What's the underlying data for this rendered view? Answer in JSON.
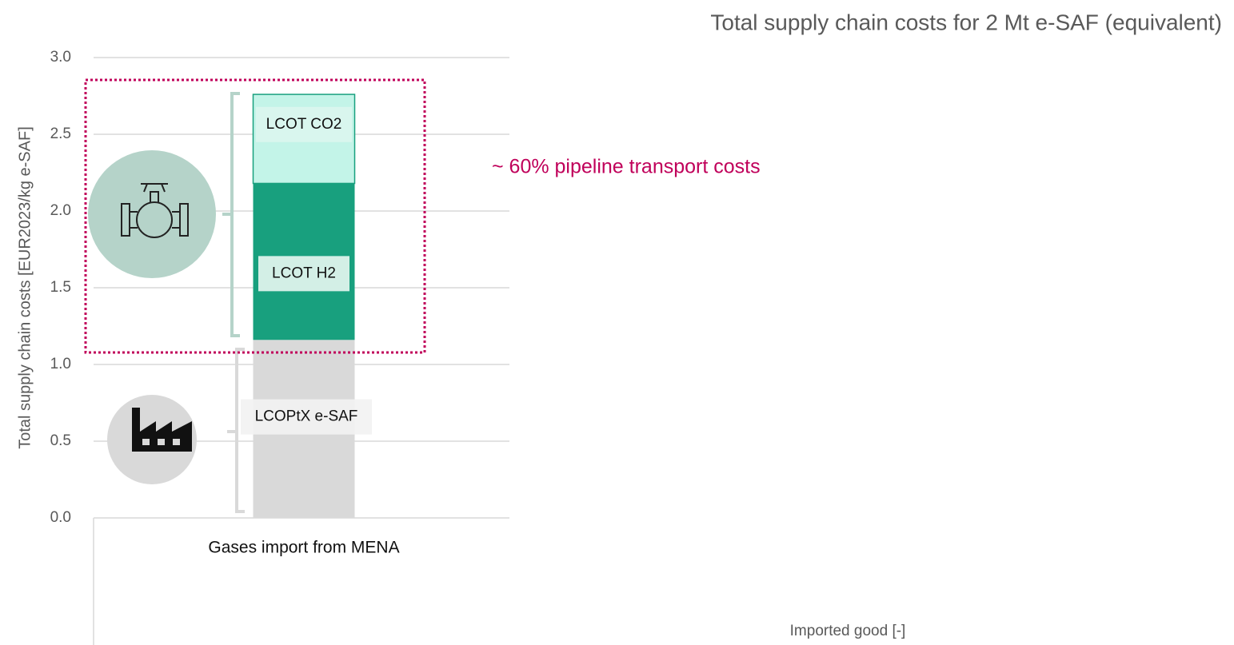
{
  "chart_data": {
    "type": "stacked_bar",
    "title": "Total supply chain costs for 2 Mt e-SAF (equivalent)",
    "y_label": "Total supply chain costs [EUR2023/kg e-SAF]",
    "x_label": "Imported good [-]",
    "annotation": "~ 60% pipeline transport costs",
    "categories": [
      "Gases import from MENA"
    ],
    "series": [
      {
        "name": "LCOPtX e-SAF",
        "color": "#d9d9d9",
        "values": [
          1.16
        ]
      },
      {
        "name": "LCOT H2",
        "color": "#18a07e",
        "values": [
          1.02
        ]
      },
      {
        "name": "LCOT CO2",
        "color": "#c3f4e8",
        "values": [
          0.58
        ]
      }
    ],
    "ylim": [
      0,
      3
    ],
    "yticks": [
      {
        "value": 0,
        "label": "0.0"
      },
      0.5,
      {
        "value": 1,
        "label": "1.0"
      },
      1.5,
      {
        "value": 2,
        "label": "2.0"
      },
      2.5,
      {
        "value": 3,
        "label": "3.0"
      }
    ],
    "grid": true
  }
}
